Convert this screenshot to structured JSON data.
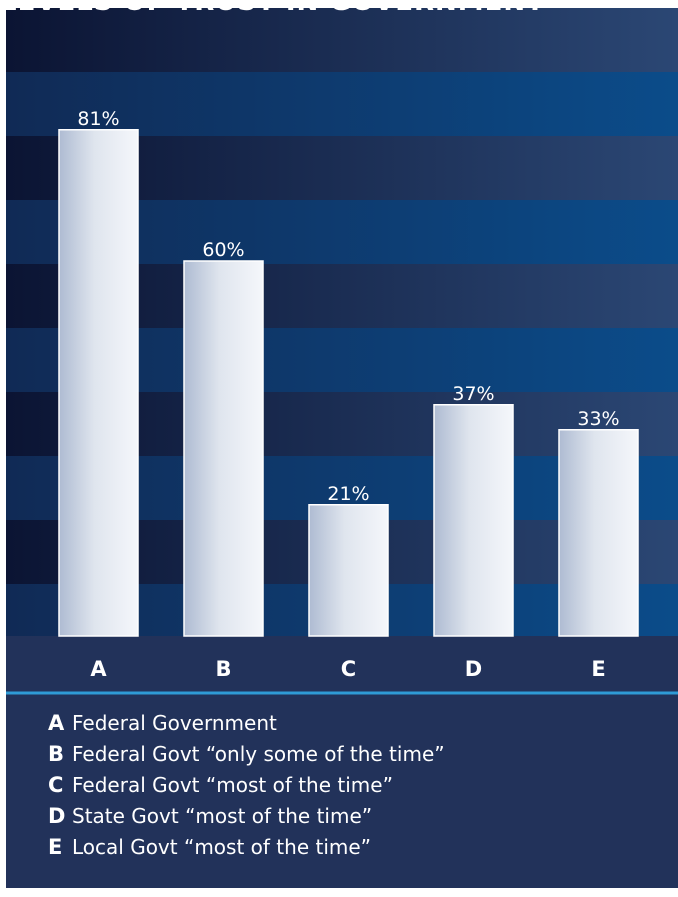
{
  "chart_data": {
    "type": "bar",
    "title": "LEVELS OF TRUST IN GOVERNMENT",
    "categories": [
      "A",
      "B",
      "C",
      "D",
      "E"
    ],
    "values": [
      81,
      60,
      21,
      37,
      33
    ],
    "value_labels": [
      "81%",
      "60%",
      "21%",
      "37%",
      "33%"
    ],
    "ylim": [
      0,
      100
    ],
    "grid": false,
    "legend": [
      {
        "key": "A",
        "label": "Federal Government"
      },
      {
        "key": "B",
        "label": "Federal Govt “only some of the time”"
      },
      {
        "key": "C",
        "label": "Federal Govt “most of the time”"
      },
      {
        "key": "D",
        "label": "State Govt “most of the time”"
      },
      {
        "key": "E",
        "label": "Local Govt “most of the time”"
      }
    ]
  },
  "colors": {
    "panel": "#22325a",
    "stripe_dark": "#0b1433",
    "stripe_light": "#0b4c8a",
    "divider": "#2f9bd6",
    "bar_light": "#f4f6fa",
    "bar_shade": "#a9b6cd",
    "text": "#ffffff"
  }
}
